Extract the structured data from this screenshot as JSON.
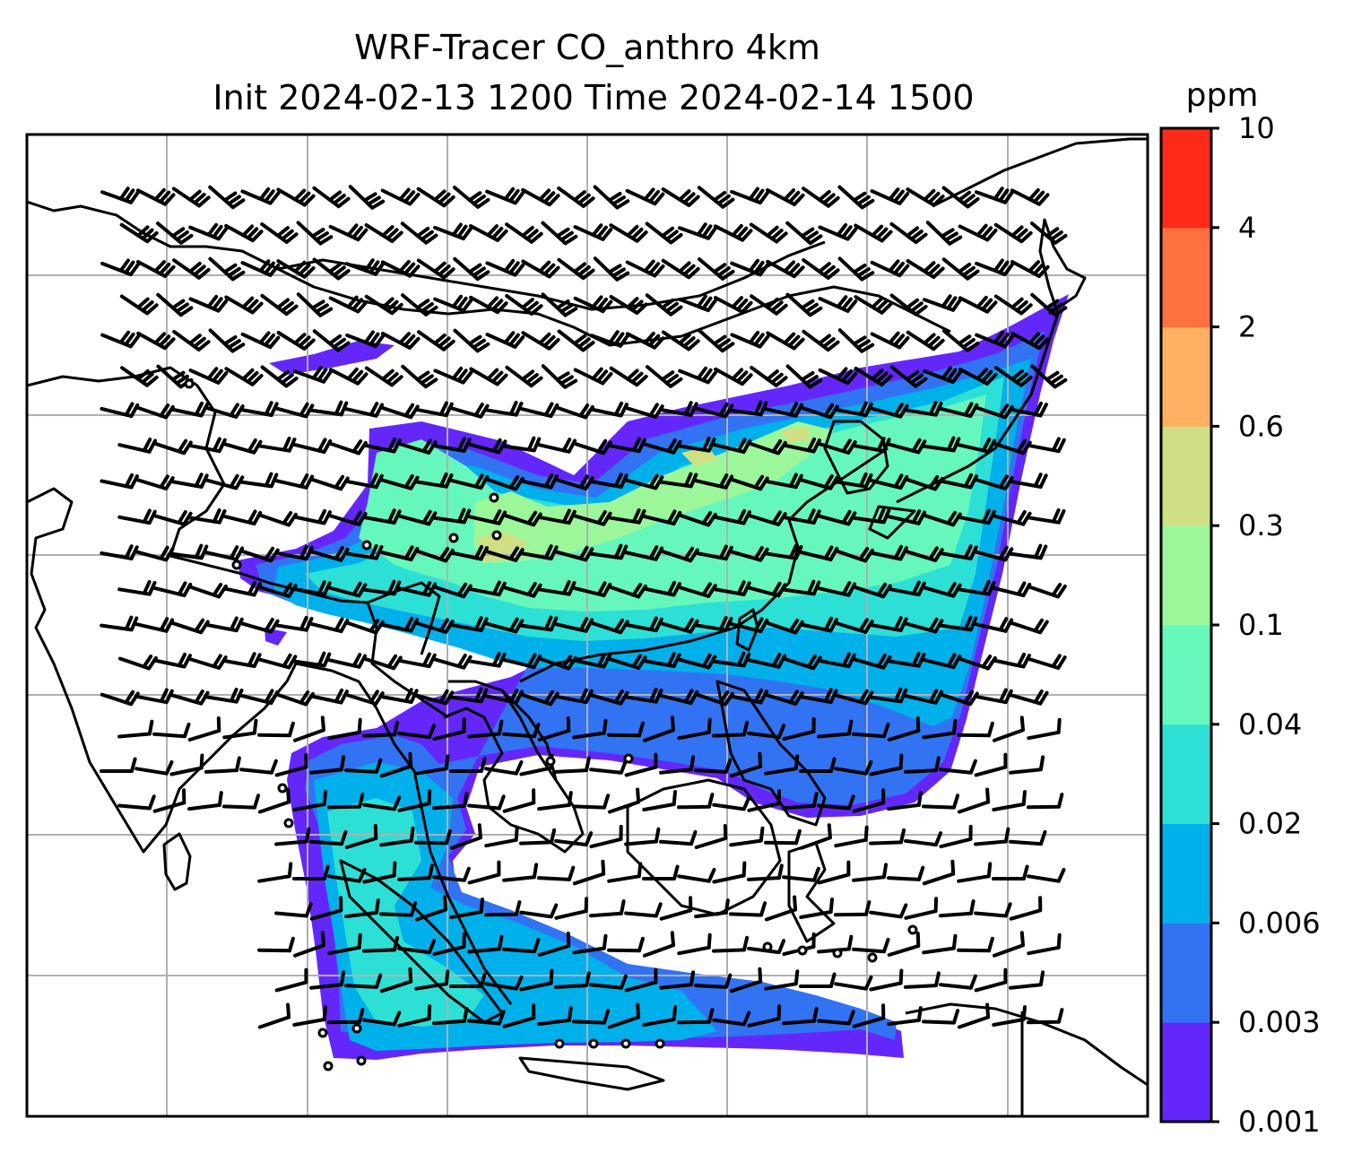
{
  "title": {
    "line1": "WRF-Tracer CO_anthro 4km",
    "line2": "Init 2024-02-13 1200 Time 2024-02-14 1500"
  },
  "colorbar": {
    "unit": "ppm",
    "levels": [
      {
        "label": "0.001",
        "color": "#6427fb"
      },
      {
        "label": "0.003",
        "color": "#3273f3"
      },
      {
        "label": "0.006",
        "color": "#00b0ea"
      },
      {
        "label": "0.02",
        "color": "#2de0d6"
      },
      {
        "label": "0.04",
        "color": "#66f7bc"
      },
      {
        "label": "0.1",
        "color": "#9bf79a"
      },
      {
        "label": "0.3",
        "color": "#cfe084"
      },
      {
        "label": "0.6",
        "color": "#ffb060"
      },
      {
        "label": "2",
        "color": "#ff7040"
      },
      {
        "label": "4",
        "color": "#ff2a1a"
      },
      {
        "label": "10",
        "color": ""
      }
    ]
  },
  "map": {
    "field": "CO_anthro tracer concentration",
    "overlays": [
      "wind-barbs",
      "coastlines",
      "country-borders",
      "lat-lon-gridlines"
    ]
  }
}
